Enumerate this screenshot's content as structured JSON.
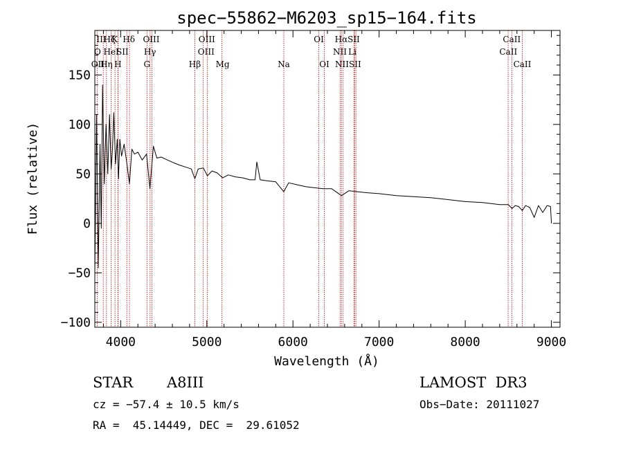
{
  "chart_data": {
    "type": "line",
    "title": "spec−55862−M6203_sp15−164.fits",
    "xlabel": "Wavelength (Å)",
    "ylabel": "Flux (relative)",
    "xlim": [
      3700,
      9100
    ],
    "ylim": [
      -105,
      195
    ],
    "x_ticks": [
      4000,
      5000,
      6000,
      7000,
      8000,
      9000
    ],
    "x_tick_labels": [
      "4000",
      "5000",
      "6000",
      "7000",
      "8000",
      "9000"
    ],
    "y_ticks": [
      -100,
      -50,
      0,
      50,
      100,
      150
    ],
    "y_tick_labels": [
      "−100",
      "−50",
      "0",
      "50",
      "100",
      "150"
    ],
    "series": [
      {
        "name": "flux",
        "x": [
          3700,
          3720,
          3740,
          3760,
          3775,
          3790,
          3810,
          3830,
          3850,
          3870,
          3890,
          3905,
          3920,
          3940,
          3960,
          3975,
          3990,
          4010,
          4040,
          4070,
          4102,
          4130,
          4160,
          4200,
          4250,
          4300,
          4340,
          4380,
          4420,
          4470,
          4520,
          4570,
          4620,
          4680,
          4750,
          4820,
          4861,
          4900,
          4960,
          5007,
          5060,
          5120,
          5183,
          5250,
          5330,
          5420,
          5500,
          5560,
          5580,
          5620,
          5700,
          5800,
          5893,
          5950,
          6050,
          6150,
          6250,
          6350,
          6450,
          6563,
          6650,
          6750,
          6850,
          7000,
          7200,
          7400,
          7600,
          7800,
          8000,
          8200,
          8400,
          8500,
          8542,
          8580,
          8620,
          8662,
          8700,
          8750,
          8800,
          8850,
          8900,
          8950,
          8990,
          9000
        ],
        "y": [
          -50,
          110,
          -45,
          80,
          -5,
          140,
          40,
          100,
          50,
          110,
          55,
          75,
          112,
          60,
          85,
          45,
          85,
          68,
          80,
          62,
          40,
          75,
          70,
          72,
          64,
          70,
          35,
          78,
          66,
          67,
          65,
          63,
          61,
          59,
          57,
          55,
          45,
          55,
          56,
          48,
          53,
          51,
          46,
          49,
          47,
          46,
          44,
          44,
          62,
          44,
          43,
          42,
          32,
          41,
          39,
          37,
          36,
          35,
          35,
          28,
          33,
          32,
          31,
          30,
          28,
          27,
          26,
          24,
          22,
          21,
          19,
          19,
          15,
          18,
          17,
          13,
          18,
          16,
          6,
          18,
          11,
          18,
          17,
          0
        ]
      }
    ],
    "line_marks": [
      {
        "label": "OII",
        "x": 3727
      },
      {
        "label": "Hθ",
        "x": 3798
      },
      {
        "label": "Hη",
        "x": 3835
      },
      {
        "label": "Hζ",
        "x": 3889
      },
      {
        "label": "K",
        "x": 3934
      },
      {
        "label": "HeI",
        "x": 3970
      },
      {
        "label": "H",
        "x": 3968
      },
      {
        "label": "SII",
        "x": 4072
      },
      {
        "label": "Hδ",
        "x": 4102
      },
      {
        "label": "G",
        "x": 4305
      },
      {
        "label": "Hγ",
        "x": 4341
      },
      {
        "label": "OIII",
        "x": 4363
      },
      {
        "label": "Hβ",
        "x": 4861
      },
      {
        "label": "OIII",
        "x": 4959
      },
      {
        "label": "OIII",
        "x": 5007
      },
      {
        "label": "Mg",
        "x": 5175
      },
      {
        "label": "Na",
        "x": 5894
      },
      {
        "label": "OI",
        "x": 6300
      },
      {
        "label": "OI",
        "x": 6364
      },
      {
        "label": "NII",
        "x": 6548
      },
      {
        "label": "Hα",
        "x": 6563
      },
      {
        "label": "NII",
        "x": 6583
      },
      {
        "label": "Li",
        "x": 6708
      },
      {
        "label": "SII",
        "x": 6716
      },
      {
        "label": "SII",
        "x": 6731
      },
      {
        "label": "CaII",
        "x": 8498
      },
      {
        "label": "CaII",
        "x": 8542
      },
      {
        "label": "CaII",
        "x": 8662
      }
    ],
    "line_label_rows": [
      [
        {
          "text": "III",
          "x": 3776
        },
        {
          "text": "Hζ",
          "x": 3869
        },
        {
          "text": "K",
          "x": 3930
        },
        {
          "text": "Hδ",
          "x": 4095
        },
        {
          "text": "OIII",
          "x": 4355
        },
        {
          "text": "OIII",
          "x": 5000
        },
        {
          "text": "OI",
          "x": 6300
        },
        {
          "text": "Hα",
          "x": 6560
        },
        {
          "text": "SII",
          "x": 6705
        },
        {
          "text": "CaII",
          "x": 8540
        }
      ],
      [
        {
          "text": "O",
          "x": 3732
        },
        {
          "text": "HeI",
          "x": 3890
        },
        {
          "text": "SII",
          "x": 4020
        },
        {
          "text": "Hγ",
          "x": 4340
        },
        {
          "text": "OIII",
          "x": 4992
        },
        {
          "text": "NII",
          "x": 6545
        },
        {
          "text": "Li",
          "x": 6690
        },
        {
          "text": "CaII",
          "x": 8500
        }
      ],
      [
        {
          "text": "OII",
          "x": 3735
        },
        {
          "text": "Hη",
          "x": 3835
        },
        {
          "text": "H",
          "x": 3968
        },
        {
          "text": "G",
          "x": 4305
        },
        {
          "text": "Hβ",
          "x": 4861
        },
        {
          "text": "Mg",
          "x": 5183
        },
        {
          "text": "Na",
          "x": 5893
        },
        {
          "text": "OI",
          "x": 6364
        },
        {
          "text": "NIISII",
          "x": 6640
        },
        {
          "text": "CaII",
          "x": 8662
        }
      ]
    ]
  },
  "info": {
    "object_class": "STAR",
    "subclass": "A8III",
    "survey": "LAMOST  DR3",
    "redshift": "cz = −57.4 ± 10.5 km/s",
    "obs_date": "Obs−Date: 20111027",
    "coordinates": "RA =  45.14449, DEC =  29.61052"
  },
  "colors": {
    "spectrum": "#000000",
    "line_marker": "#cc0000",
    "axes": "#000000",
    "background": "#ffffff"
  }
}
